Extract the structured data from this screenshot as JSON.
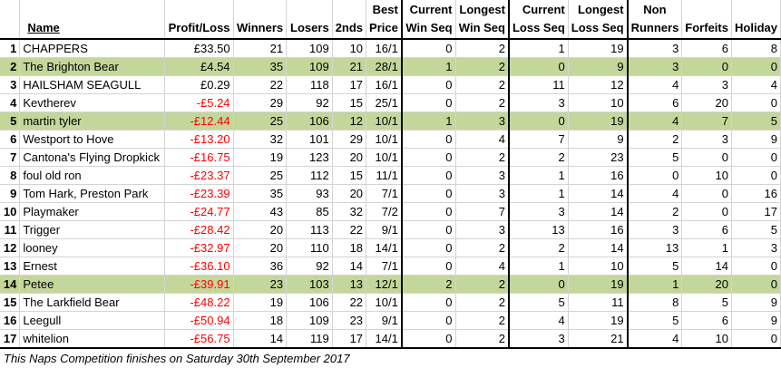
{
  "headers": {
    "rank": "",
    "name": "Name",
    "profit_loss": "Profit/Loss",
    "winners": "Winners",
    "losers": "Losers",
    "seconds": "2nds",
    "best_price": [
      "Best",
      "Price"
    ],
    "current_win_seq": [
      "Current",
      "Win Seq"
    ],
    "longest_win_seq": [
      "Longest",
      "Win Seq"
    ],
    "current_loss_seq": [
      "Current",
      "Loss Seq"
    ],
    "longest_loss_seq": [
      "Longest",
      "Loss Seq"
    ],
    "non_runners": [
      "Non",
      "Runners"
    ],
    "forfeits": "Forfeits",
    "holiday": "Holiday"
  },
  "rows": [
    {
      "rank": "1",
      "name": "CHAPPERS",
      "pl": "£33.50",
      "neg": false,
      "hl": false,
      "winners": "21",
      "losers": "109",
      "seconds": "10",
      "best": "16/1",
      "cws": "0",
      "lws": "2",
      "cls": "1",
      "lls": "19",
      "nr": "3",
      "forfeits": "6",
      "holiday": "8"
    },
    {
      "rank": "2",
      "name": "The Brighton Bear",
      "pl": "£4.54",
      "neg": false,
      "hl": true,
      "winners": "35",
      "losers": "109",
      "seconds": "21",
      "best": "28/1",
      "cws": "1",
      "lws": "2",
      "cls": "0",
      "lls": "9",
      "nr": "3",
      "forfeits": "0",
      "holiday": "0"
    },
    {
      "rank": "3",
      "name": "HAILSHAM SEAGULL",
      "pl": "£0.29",
      "neg": false,
      "hl": false,
      "winners": "22",
      "losers": "118",
      "seconds": "17",
      "best": "16/1",
      "cws": "0",
      "lws": "2",
      "cls": "11",
      "lls": "12",
      "nr": "4",
      "forfeits": "3",
      "holiday": "4"
    },
    {
      "rank": "4",
      "name": "Kevtherev",
      "pl": "-£5.24",
      "neg": true,
      "hl": false,
      "winners": "29",
      "losers": "92",
      "seconds": "15",
      "best": "25/1",
      "cws": "0",
      "lws": "2",
      "cls": "3",
      "lls": "10",
      "nr": "6",
      "forfeits": "20",
      "holiday": "0"
    },
    {
      "rank": "5",
      "name": "martin tyler",
      "pl": "-£12.44",
      "neg": true,
      "hl": true,
      "winners": "25",
      "losers": "106",
      "seconds": "12",
      "best": "10/1",
      "cws": "1",
      "lws": "3",
      "cls": "0",
      "lls": "19",
      "nr": "4",
      "forfeits": "7",
      "holiday": "5"
    },
    {
      "rank": "6",
      "name": "Westport to Hove",
      "pl": "-£13.20",
      "neg": true,
      "hl": false,
      "winners": "32",
      "losers": "101",
      "seconds": "29",
      "best": "10/1",
      "cws": "0",
      "lws": "4",
      "cls": "7",
      "lls": "9",
      "nr": "2",
      "forfeits": "3",
      "holiday": "9"
    },
    {
      "rank": "7",
      "name": "Cantona's Flying Dropkick",
      "pl": "-£16.75",
      "neg": true,
      "hl": false,
      "winners": "19",
      "losers": "123",
      "seconds": "20",
      "best": "10/1",
      "cws": "0",
      "lws": "2",
      "cls": "2",
      "lls": "23",
      "nr": "5",
      "forfeits": "0",
      "holiday": "0"
    },
    {
      "rank": "8",
      "name": "foul old ron",
      "pl": "-£23.37",
      "neg": true,
      "hl": false,
      "winners": "25",
      "losers": "112",
      "seconds": "15",
      "best": "11/1",
      "cws": "0",
      "lws": "3",
      "cls": "1",
      "lls": "16",
      "nr": "0",
      "forfeits": "10",
      "holiday": "0"
    },
    {
      "rank": "9",
      "name": "Tom Hark, Preston Park",
      "pl": "-£23.39",
      "neg": true,
      "hl": false,
      "winners": "35",
      "losers": "93",
      "seconds": "20",
      "best": "7/1",
      "cws": "0",
      "lws": "3",
      "cls": "1",
      "lls": "14",
      "nr": "4",
      "forfeits": "0",
      "holiday": "16"
    },
    {
      "rank": "10",
      "name": "Playmaker",
      "pl": "-£24.77",
      "neg": true,
      "hl": false,
      "winners": "43",
      "losers": "85",
      "seconds": "32",
      "best": "7/2",
      "cws": "0",
      "lws": "7",
      "cls": "3",
      "lls": "14",
      "nr": "2",
      "forfeits": "0",
      "holiday": "17"
    },
    {
      "rank": "11",
      "name": "Trigger",
      "pl": "-£28.42",
      "neg": true,
      "hl": false,
      "winners": "20",
      "losers": "113",
      "seconds": "22",
      "best": "9/1",
      "cws": "0",
      "lws": "3",
      "cls": "13",
      "lls": "16",
      "nr": "3",
      "forfeits": "6",
      "holiday": "5"
    },
    {
      "rank": "12",
      "name": "looney",
      "pl": "-£32.97",
      "neg": true,
      "hl": false,
      "winners": "20",
      "losers": "110",
      "seconds": "18",
      "best": "14/1",
      "cws": "0",
      "lws": "2",
      "cls": "2",
      "lls": "14",
      "nr": "13",
      "forfeits": "1",
      "holiday": "3"
    },
    {
      "rank": "13",
      "name": "Ernest",
      "pl": "-£36.10",
      "neg": true,
      "hl": false,
      "winners": "36",
      "losers": "92",
      "seconds": "14",
      "best": "7/1",
      "cws": "0",
      "lws": "4",
      "cls": "1",
      "lls": "10",
      "nr": "5",
      "forfeits": "14",
      "holiday": "0"
    },
    {
      "rank": "14",
      "name": "Petee",
      "pl": "-£39.91",
      "neg": true,
      "hl": true,
      "winners": "23",
      "losers": "103",
      "seconds": "13",
      "best": "12/1",
      "cws": "2",
      "lws": "2",
      "cls": "0",
      "lls": "19",
      "nr": "1",
      "forfeits": "20",
      "holiday": "0"
    },
    {
      "rank": "15",
      "name": "The Larkfield Bear",
      "pl": "-£48.22",
      "neg": true,
      "hl": false,
      "winners": "19",
      "losers": "106",
      "seconds": "22",
      "best": "10/1",
      "cws": "0",
      "lws": "2",
      "cls": "5",
      "lls": "11",
      "nr": "8",
      "forfeits": "5",
      "holiday": "9"
    },
    {
      "rank": "16",
      "name": "Leegull",
      "pl": "-£50.94",
      "neg": true,
      "hl": false,
      "winners": "18",
      "losers": "109",
      "seconds": "23",
      "best": "9/1",
      "cws": "0",
      "lws": "2",
      "cls": "4",
      "lls": "19",
      "nr": "5",
      "forfeits": "6",
      "holiday": "9"
    },
    {
      "rank": "17",
      "name": "whitelion",
      "pl": "-£56.75",
      "neg": true,
      "hl": false,
      "winners": "14",
      "losers": "119",
      "seconds": "17",
      "best": "14/1",
      "cws": "0",
      "lws": "2",
      "cls": "3",
      "lls": "21",
      "nr": "4",
      "forfeits": "10",
      "holiday": "0"
    }
  ],
  "footer": "This Naps Competition finishes on Saturday 30th September 2017",
  "colors": {
    "highlight_row": "#c4d79b",
    "negative_text": "#ff0000",
    "gridline": "#d4d4d4",
    "thick_border": "#000000"
  }
}
